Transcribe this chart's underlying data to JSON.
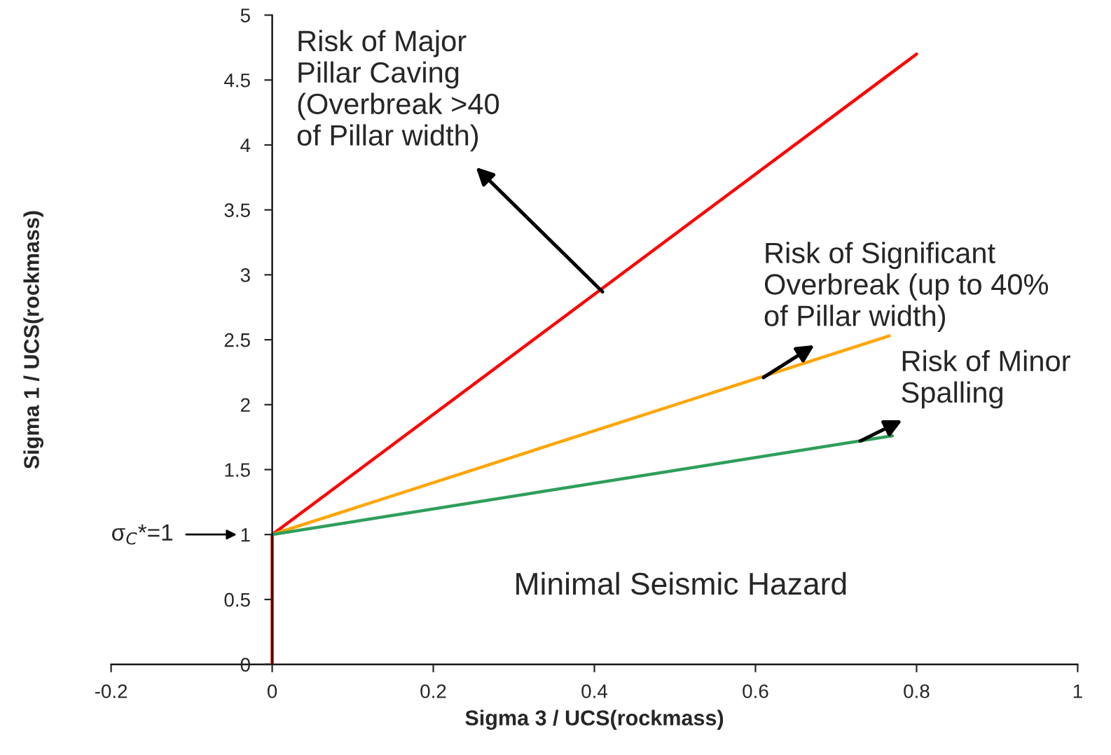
{
  "chart_data": {
    "type": "line",
    "xlabel": "Sigma 3 / UCS(rockmass)",
    "ylabel": "Sigma 1 / UCS(rockmass)",
    "xlim": [
      -0.2,
      1
    ],
    "xticks": [
      -0.2,
      0,
      0.2,
      0.4,
      0.6,
      0.8,
      1
    ],
    "ylim": [
      0,
      5
    ],
    "yticks": [
      0,
      0.5,
      1,
      1.5,
      2,
      2.5,
      3,
      3.5,
      4,
      4.5,
      5
    ],
    "grid": false,
    "legend": false,
    "marker": "none",
    "line_style": "solid",
    "series": [
      {
        "color": "#ff0000",
        "x": [
          0,
          0,
          0.8
        ],
        "values": [
          0,
          1,
          4.7
        ]
      },
      {
        "color": "#ffa500",
        "x": [
          0,
          0.766
        ],
        "values": [
          1,
          2.53
        ]
      },
      {
        "color": "#2e9e5b",
        "x": [
          0,
          0.77
        ],
        "values": [
          1,
          1.76
        ]
      }
    ],
    "annotations": [
      {
        "text": "Risk of Major\nPillar Caving\n(Overbreak >40\nof Pillar width)",
        "x": 0.41,
        "y": 2.87
      },
      {
        "text": "Risk of Significant\nOverbreak (up to 40%\nof Pillar width)",
        "x": 0.61,
        "y": 2.21
      },
      {
        "text": "Risk of Minor\nSpalling",
        "x": 0.73,
        "y": 1.72
      },
      "Minimal Seismic Hazard",
      "σ$_{C}$*=1"
    ]
  }
}
